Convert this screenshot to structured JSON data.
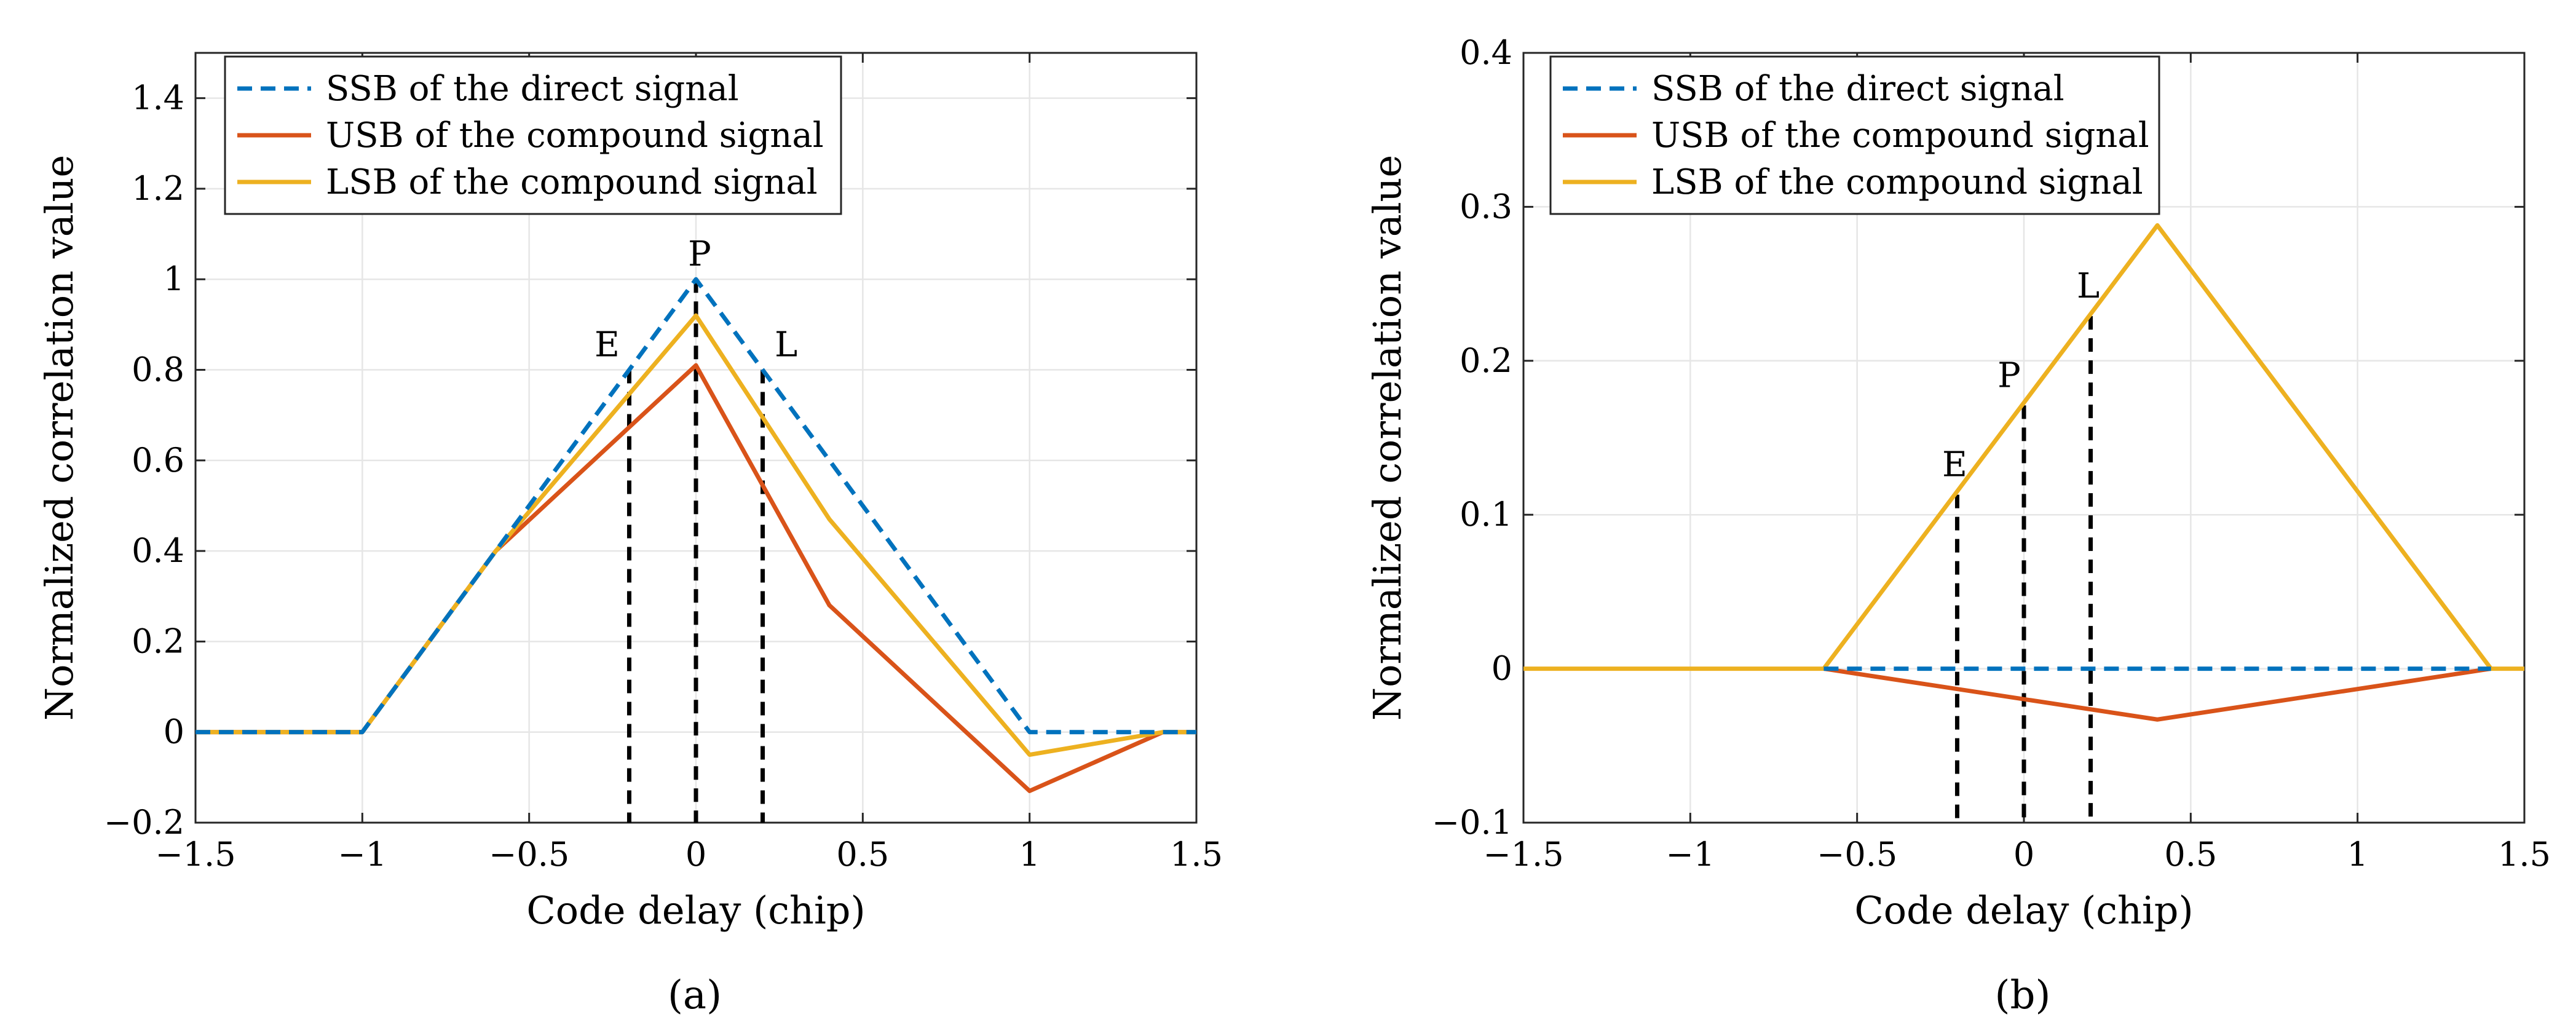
{
  "chart_data": [
    {
      "type": "line",
      "panel_label": "(a)",
      "xlabel": "Code delay (chip)",
      "ylabel": "Normalized correlation value",
      "xlim": [
        -1.5,
        1.5
      ],
      "ylim": [
        -0.2,
        1.5
      ],
      "xticks": [
        -1.5,
        -1,
        -0.5,
        0,
        0.5,
        1,
        1.5
      ],
      "xtick_labels": [
        "−1.5",
        "−1",
        "−0.5",
        "0",
        "0.5",
        "1",
        "1.5"
      ],
      "yticks": [
        -0.2,
        0,
        0.2,
        0.4,
        0.6,
        0.8,
        1,
        1.2,
        1.4
      ],
      "ytick_labels": [
        "−0.2",
        "0",
        "0.2",
        "0.4",
        "0.6",
        "0.8",
        "1",
        "1.2",
        "1.4"
      ],
      "grid": true,
      "legend_position": "top-left",
      "series": [
        {
          "name": "SSB of the direct signal",
          "color": "#0072BD",
          "dash": true,
          "x": [
            -1.5,
            -1,
            0,
            1,
            1.5
          ],
          "y": [
            0,
            0,
            1,
            0,
            0
          ]
        },
        {
          "name": "USB of the compound signal",
          "color": "#D95319",
          "dash": false,
          "x": [
            -1.5,
            -1,
            -0.6,
            0,
            0.4,
            1,
            1.4,
            1.5
          ],
          "y": [
            0,
            0,
            0.4,
            0.81,
            0.28,
            -0.13,
            0,
            0
          ]
        },
        {
          "name": "LSB of the compound signal",
          "color": "#EDB120",
          "dash": false,
          "x": [
            -1.5,
            -1,
            -0.6,
            0,
            0.4,
            1,
            1.4,
            1.5
          ],
          "y": [
            0,
            0,
            0.4,
            0.92,
            0.47,
            -0.05,
            0,
            0
          ]
        }
      ],
      "markers": [
        {
          "label": "E",
          "x": -0.2,
          "y": 0.8
        },
        {
          "label": "P",
          "x": 0,
          "y": 1.0
        },
        {
          "label": "L",
          "x": 0.2,
          "y": 0.8
        }
      ]
    },
    {
      "type": "line",
      "panel_label": "(b)",
      "xlabel": "Code delay (chip)",
      "ylabel": "Normalized correlation value",
      "xlim": [
        -1.5,
        1.5
      ],
      "ylim": [
        -0.1,
        0.4
      ],
      "xticks": [
        -1.5,
        -1,
        -0.5,
        0,
        0.5,
        1,
        1.5
      ],
      "xtick_labels": [
        "−1.5",
        "−1",
        "−0.5",
        "0",
        "0.5",
        "1",
        "1.5"
      ],
      "yticks": [
        -0.1,
        0,
        0.1,
        0.2,
        0.3,
        0.4
      ],
      "ytick_labels": [
        "−0.1",
        "0",
        "0.1",
        "0.2",
        "0.3",
        "0.4"
      ],
      "grid": true,
      "legend_position": "top-left",
      "series": [
        {
          "name": "SSB of the direct signal",
          "color": "#0072BD",
          "dash": true,
          "x": [
            -0.6,
            1.4
          ],
          "y": [
            0,
            0
          ]
        },
        {
          "name": "USB of the compound signal",
          "color": "#D95319",
          "dash": false,
          "x": [
            -0.6,
            0.4,
            1.4
          ],
          "y": [
            0,
            -0.033,
            0
          ]
        },
        {
          "name": "LSB of the compound signal",
          "color": "#EDB120",
          "dash": false,
          "x": [
            -1.5,
            -0.6,
            0.4,
            1.4,
            1.5
          ],
          "y": [
            0,
            0,
            0.288,
            0,
            0
          ]
        }
      ],
      "markers": [
        {
          "label": "E",
          "x": -0.2,
          "y": 0.113
        },
        {
          "label": "P",
          "x": 0,
          "y": 0.171
        },
        {
          "label": "L",
          "x": 0.2,
          "y": 0.229
        }
      ]
    }
  ]
}
